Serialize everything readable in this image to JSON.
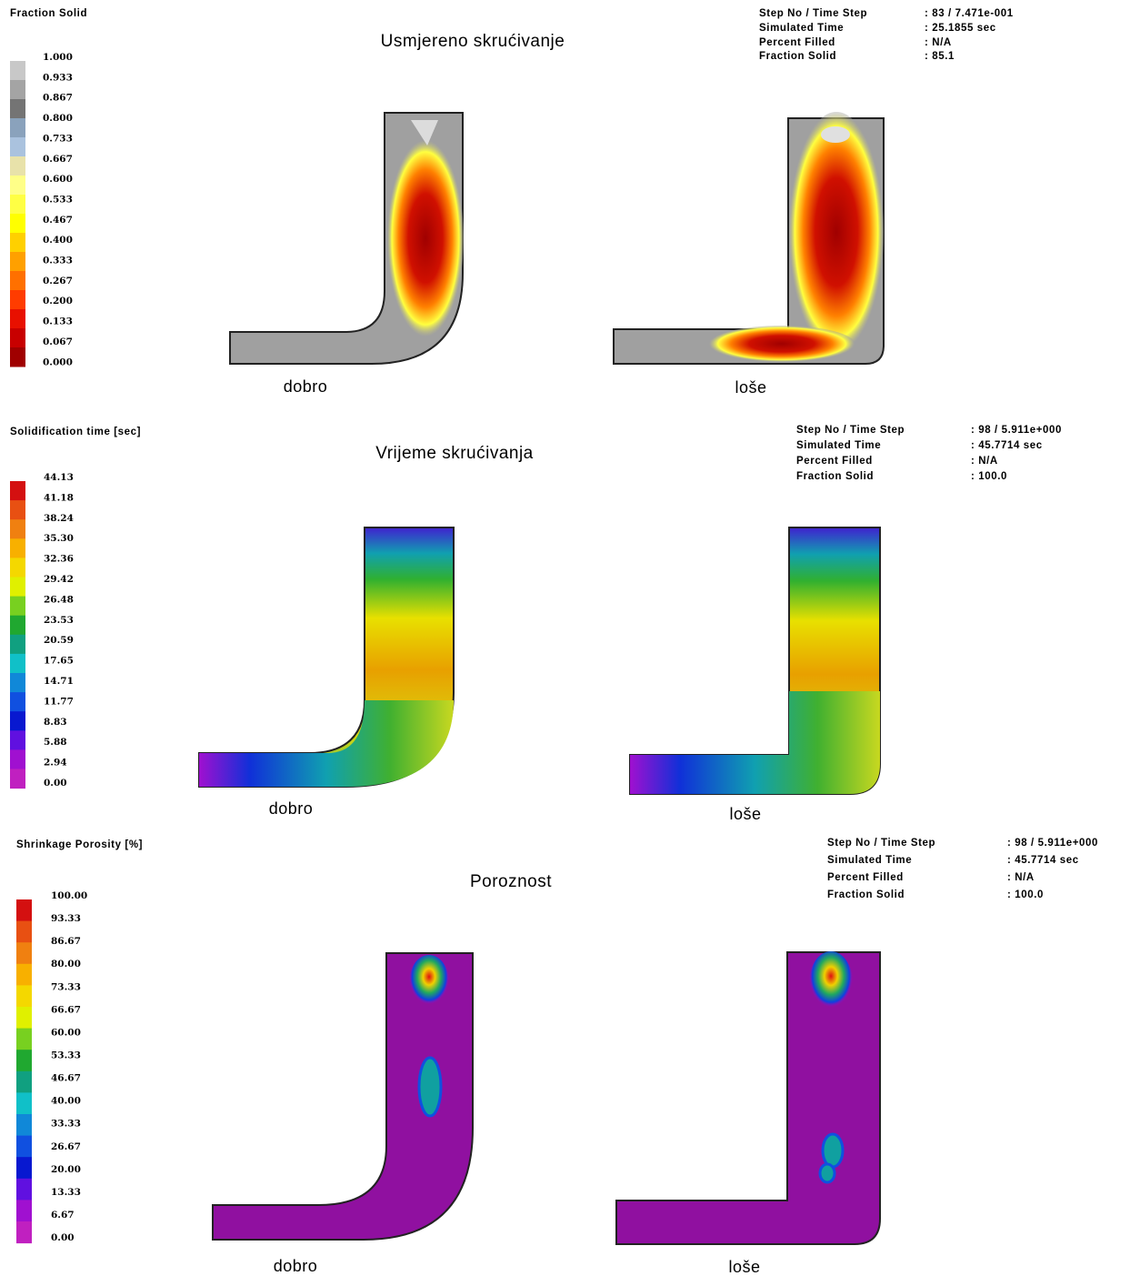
{
  "panels": [
    {
      "legend_title": "Fraction Solid",
      "title": "Usmjereno skrućivanje",
      "legend": [
        {
          "label": "1.000",
          "color": "#c8c8c8"
        },
        {
          "label": "0.933",
          "color": "#a4a4a4"
        },
        {
          "label": "0.867",
          "color": "#747474"
        },
        {
          "label": "0.800",
          "color": "#8aa2bc"
        },
        {
          "label": "0.733",
          "color": "#aac2de"
        },
        {
          "label": "0.667",
          "color": "#e8e2aa"
        },
        {
          "label": "0.600",
          "color": "#ffff88"
        },
        {
          "label": "0.533",
          "color": "#ffff44"
        },
        {
          "label": "0.467",
          "color": "#ffff00"
        },
        {
          "label": "0.400",
          "color": "#ffd000"
        },
        {
          "label": "0.333",
          "color": "#ffa000"
        },
        {
          "label": "0.267",
          "color": "#ff7000"
        },
        {
          "label": "0.200",
          "color": "#ff3c00"
        },
        {
          "label": "0.133",
          "color": "#e81000"
        },
        {
          "label": "0.067",
          "color": "#c80000"
        },
        {
          "label": "0.000",
          "color": "#a00000"
        }
      ],
      "info": [
        [
          "Step No / Time Step",
          ": 83 / 7.471e-001"
        ],
        [
          "Simulated Time",
          ": 25.1855 sec"
        ],
        [
          "Percent Filled",
          ": N/A"
        ],
        [
          "Fraction Solid",
          ": 85.1"
        ]
      ],
      "captions": [
        "dobro",
        "loše"
      ]
    },
    {
      "legend_title": "Solidification time [sec]",
      "title": "Vrijeme skrućivanja",
      "legend": [
        {
          "label": "44.13",
          "color": "#d41010"
        },
        {
          "label": "41.18",
          "color": "#e85012"
        },
        {
          "label": "38.24",
          "color": "#f08010"
        },
        {
          "label": "35.30",
          "color": "#f8b000"
        },
        {
          "label": "32.36",
          "color": "#f4d800"
        },
        {
          "label": "29.42",
          "color": "#e0f000"
        },
        {
          "label": "26.48",
          "color": "#78d020"
        },
        {
          "label": "23.53",
          "color": "#20a830"
        },
        {
          "label": "20.59",
          "color": "#10a080"
        },
        {
          "label": "17.65",
          "color": "#10c0c8"
        },
        {
          "label": "14.71",
          "color": "#1088d8"
        },
        {
          "label": "11.77",
          "color": "#1050e0"
        },
        {
          "label": "8.83",
          "color": "#0818d0"
        },
        {
          "label": "5.88",
          "color": "#6010e0"
        },
        {
          "label": "2.94",
          "color": "#a010d0"
        },
        {
          "label": "0.00",
          "color": "#c020c0"
        }
      ],
      "info": [
        [
          "Step No / Time Step",
          ": 98 / 5.911e+000"
        ],
        [
          "Simulated Time",
          ": 45.7714 sec"
        ],
        [
          "Percent Filled",
          ": N/A"
        ],
        [
          "Fraction Solid",
          ": 100.0"
        ]
      ],
      "captions": [
        "dobro",
        "loše"
      ]
    },
    {
      "legend_title": "Shrinkage Porosity [%]",
      "title": "Poroznost",
      "legend": [
        {
          "label": "100.00",
          "color": "#d41010"
        },
        {
          "label": "93.33",
          "color": "#e85012"
        },
        {
          "label": "86.67",
          "color": "#f08010"
        },
        {
          "label": "80.00",
          "color": "#f8b000"
        },
        {
          "label": "73.33",
          "color": "#f4d800"
        },
        {
          "label": "66.67",
          "color": "#e0f000"
        },
        {
          "label": "60.00",
          "color": "#78d020"
        },
        {
          "label": "53.33",
          "color": "#20a830"
        },
        {
          "label": "46.67",
          "color": "#10a080"
        },
        {
          "label": "40.00",
          "color": "#10c0c8"
        },
        {
          "label": "33.33",
          "color": "#1088d8"
        },
        {
          "label": "26.67",
          "color": "#1050e0"
        },
        {
          "label": "20.00",
          "color": "#0818d0"
        },
        {
          "label": "13.33",
          "color": "#6010e0"
        },
        {
          "label": "6.67",
          "color": "#a010d0"
        },
        {
          "label": "0.00",
          "color": "#c020c0"
        }
      ],
      "info": [
        [
          "Step No / Time Step",
          ": 98 / 5.911e+000"
        ],
        [
          "Simulated Time",
          ": 45.7714 sec"
        ],
        [
          "Percent Filled",
          ": N/A"
        ],
        [
          "Fraction Solid",
          ": 100.0"
        ]
      ],
      "captions": [
        "dobro",
        "loše"
      ]
    }
  ]
}
